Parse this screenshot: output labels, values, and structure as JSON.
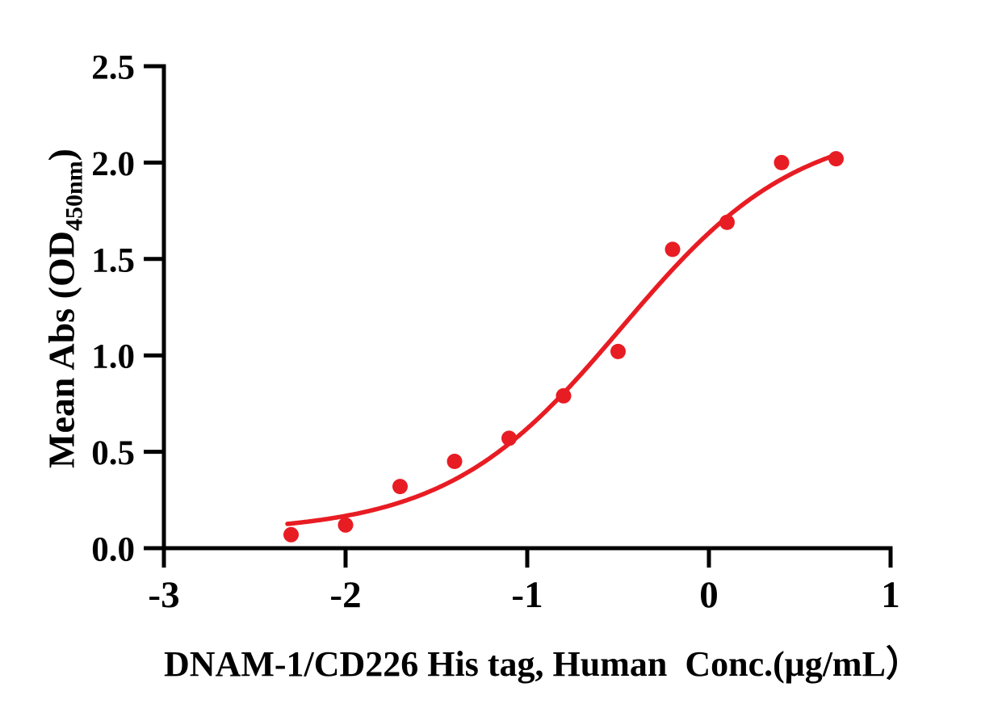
{
  "chart_data": {
    "type": "scatter",
    "title": "",
    "xlabel": "DNAM-1/CD226 His tag, Human  Conc.(μg/mL）",
    "ylabel": "Mean Abs (OD450nm)",
    "ylabel_prefix": "Mean Abs (OD",
    "ylabel_subscript": "450nm",
    "ylabel_suffix": ")",
    "xlim": [
      -3,
      1
    ],
    "ylim": [
      0,
      2.5
    ],
    "x_scale": "log10 of concentration",
    "grid": false,
    "legend": "none",
    "x_ticks": [
      -3,
      -2,
      -1,
      0,
      1
    ],
    "x_tick_labels": [
      "-3",
      "-2",
      "-1",
      "0",
      "1"
    ],
    "y_ticks": [
      0,
      0.5,
      1,
      1.5,
      2,
      2.5
    ],
    "y_tick_labels": [
      "0.0",
      "0.5",
      "1.0",
      "1.5",
      "2.0",
      "2.5"
    ],
    "points": {
      "x": [
        -2.3,
        -2.0,
        -1.7,
        -1.4,
        -1.1,
        -0.8,
        -0.5,
        -0.2,
        0.1,
        0.4,
        0.7
      ],
      "y": [
        0.07,
        0.12,
        0.32,
        0.45,
        0.57,
        0.79,
        1.02,
        1.55,
        1.69,
        2.0,
        2.02
      ]
    },
    "fit_curve": {
      "model": "4PL sigmoid",
      "bottom": 0.08,
      "top": 2.21,
      "logEC50": -0.48,
      "hill": 0.9,
      "x_start": -2.32,
      "x_end": 0.69
    },
    "series_color": "#e81c23",
    "axis_color": "#000000",
    "background_color": "#ffffff"
  }
}
